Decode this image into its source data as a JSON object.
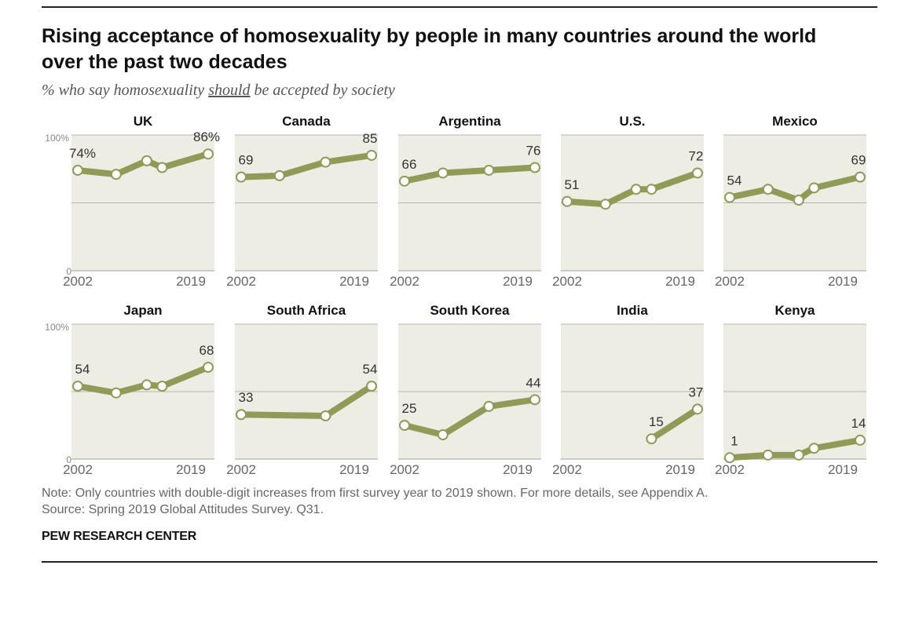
{
  "header": {
    "title_line1": "Rising acceptance of homosexuality by people in many countries around the world",
    "title_line2": "over the past two decades",
    "subtitle_pre": "% who say homosexuality ",
    "subtitle_emph": "should",
    "subtitle_post": " be accepted by society"
  },
  "footer": {
    "note": "Note: Only countries with double-digit increases from first survey year to 2019 shown. For more details, see Appendix A.",
    "source": "Source: Spring 2019 Global Attitudes Survey. Q31.",
    "brand": "PEW RESEARCH CENTER"
  },
  "colors": {
    "line": "#8f9b56",
    "panel_bg": "#edede3",
    "gridline": "#b8b8b0",
    "axis": "#bbbbbb",
    "marker_fill": "#ffffff",
    "text": "#333333"
  },
  "chart_data": {
    "type": "line",
    "y_axis": {
      "min": 0,
      "max": 100,
      "tick_labels": [
        "0",
        "100%"
      ]
    },
    "x_axis": {
      "range": [
        2002,
        2019
      ],
      "tick_labels": [
        "2002",
        "2019"
      ]
    },
    "panels": [
      {
        "name": "UK",
        "x": [
          2002,
          2007,
          2011,
          2013,
          2019
        ],
        "y": [
          74,
          71,
          81,
          76,
          86
        ],
        "first_label": "74%",
        "last_label": "86%"
      },
      {
        "name": "Canada",
        "x": [
          2002,
          2007,
          2013,
          2019
        ],
        "y": [
          69,
          70,
          80,
          85
        ],
        "first_label": "69",
        "last_label": "85"
      },
      {
        "name": "Argentina",
        "x": [
          2002,
          2007,
          2013,
          2019
        ],
        "y": [
          66,
          72,
          74,
          76
        ],
        "first_label": "66",
        "last_label": "76"
      },
      {
        "name": "U.S.",
        "x": [
          2002,
          2007,
          2011,
          2013,
          2019
        ],
        "y": [
          51,
          49,
          60,
          60,
          72
        ],
        "first_label": "51",
        "last_label": "72"
      },
      {
        "name": "Mexico",
        "x": [
          2002,
          2007,
          2011,
          2013,
          2019
        ],
        "y": [
          54,
          60,
          52,
          61,
          69
        ],
        "first_label": "54",
        "last_label": "69"
      },
      {
        "name": "Japan",
        "x": [
          2002,
          2007,
          2011,
          2013,
          2019
        ],
        "y": [
          54,
          49,
          55,
          54,
          68
        ],
        "first_label": "54",
        "last_label": "68"
      },
      {
        "name": "South Africa",
        "x": [
          2002,
          2013,
          2019
        ],
        "y": [
          33,
          32,
          54
        ],
        "first_label": "33",
        "last_label": "54"
      },
      {
        "name": "South Korea",
        "x": [
          2002,
          2007,
          2013,
          2019
        ],
        "y": [
          25,
          18,
          39,
          44
        ],
        "first_label": "25",
        "last_label": "44"
      },
      {
        "name": "India",
        "x": [
          2013,
          2019
        ],
        "y": [
          15,
          37
        ],
        "first_label": "15",
        "last_label": "37"
      },
      {
        "name": "Kenya",
        "x": [
          2002,
          2007,
          2011,
          2013,
          2019
        ],
        "y": [
          1,
          3,
          3,
          8,
          14
        ],
        "first_label": "1",
        "last_label": "14"
      }
    ]
  }
}
